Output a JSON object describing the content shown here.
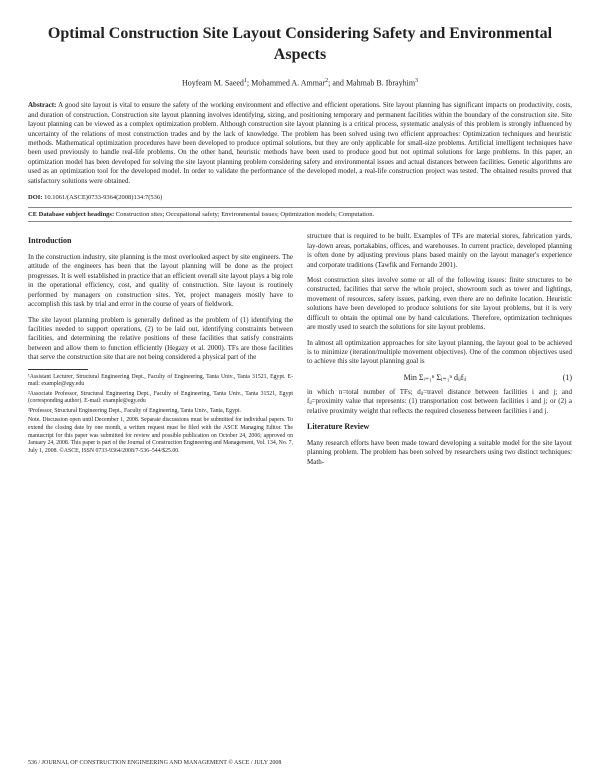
{
  "title": "Optimal Construction Site Layout Considering Safety and Environmental Aspects",
  "authors": {
    "a1": "Hoyfeam M. Saeed",
    "a2": "Mohammed A. Ammar",
    "a3": "Mahmab B. Ibrayhim"
  },
  "abstract_label": "Abstract:",
  "abstract": "A good site layout is vital to ensure the safety of the working environment and effective and efficient operations. Site layout planning has significant impacts on productivity, costs, and duration of construction. Construction site layout planning involves identifying, sizing, and positioning temporary and permanent facilities within the boundary of the construction site. Site layout planning can be viewed as a complex optimization problem. Although construction site layout planning is a critical process, systematic analysis of this problem is strongly influenced by uncertainty of the relations of most construction trades and by the lack of knowledge. The problem has been solved using two efficient approaches: Optimization techniques and heuristic methods. Mathematical optimization procedures have been developed to produce optimal solutions, but they are only applicable for small-size problems. Artificial intelligent techniques have been used previously to handle real-life problems. On the other hand, heuristic methods have been used to produce good but not optimal solutions for large problems. In this paper, an optimization model has been developed for solving the site layout planning problem considering safety and environmental issues and actual distances between facilities. Genetic algorithms are used as an optimization tool for the developed model. In order to validate the performance of the developed model, a real-life construction project was tested. The obtained results proved that satisfactory solutions were obtained.",
  "doi_label": "DOI:",
  "doi": "10.1061/(ASCE)0733-9364(2008)134:7(536)",
  "keywords_label": "CE Database subject headings:",
  "keywords": "Construction sites; Occupational safety; Environmental issues; Optimization models; Computation.",
  "intro_head": "Introduction",
  "intro_p1": "In the construction industry, site planning is the most overlooked aspect by site engineers. The attitude of the engineers has been that the layout planning will be done as the project progresses. It is well established in practice that an efficient overall site layout plays a big role in the operational efficiency, cost, and quality of construction. Site layout is routinely performed by managers on construction sites. Yet, project managers mostly have to accomplish this task by trial and error in the course of years of fieldwork.",
  "intro_p2": "The site layout planning problem is generally defined as the problem of (1) identifying the facilities needed to support operations, (2) to be laid out, identifying constraints between facilities, and determining the relative positions of these facilities that satisfy constraints between and allow them to function efficiently (Hegazy et al. 2000). TFs are those facilities that serve the construction site that are not being considered a physical part of the",
  "intro_p3": "structure that is required to be built. Examples of TFs are material stores, fabrication yards, lay-down areas, portakabins, offices, and warehouses. In current practice, developed planning is often done by adjusting previous plans based mainly on the layout manager's experience and corporate traditions (Tawfik and Fernando 2001).",
  "intro_p4": "Most construction sites involve some or all of the following issues: finite structures to be constructed, facilities that serve the whole project, showroom such as tower and lightings, movement of resources, safety issues, parking, even there are no definite location. Heuristic solutions have been developed to produce solutions for site layout problems, but it is very difficult to obtain the optimal one by hand calculations. Therefore, optimization techniques are mostly used to search the solutions for site layout problems.",
  "intro_p5": "In almost all optimization approaches for site layout planning, the layout goal to be achieved is to minimize (iteration/multiple movement objectives). One of the common objectives used to achieve this site layout planning goal is",
  "eq_label": "Min",
  "eq_body": "Σᵢ₌₁ⁿ Σⱼ₌₁ⁿ dᵢⱼfᵢⱼ",
  "eq_num": "(1)",
  "intro_p6": "in which n=total number of TFs; dᵢⱼ=travel distance between facilities i and j; and fᵢⱼ=proximity value that represents: (1) transportation cost between facilities i and j; or (2) a relative proximity weight that reflects the required closeness between facilities i and j.",
  "litrev_head": "Literature Review",
  "litrev_p1": "Many research efforts have been made toward developing a suitable model for the site layout planning problem. The problem has been solved by researchers using two distinct techniques: Math-",
  "affil1": "¹Assistant Lecturer, Structural Engineering Dept., Faculty of Engineering, Tanta Univ., Tanta 31521, Egypt. E-mail: example@egy.edu",
  "affil2": "²Associate Professor, Structural Engineering Dept., Faculty of Engineering, Tanta Univ., Tanta 31521, Egypt (corresponding author). E-mail: example@egy.edu",
  "affil3": "³Professor, Structural Engineering Dept., Faculty of Engineering, Tanta Univ., Tanta, Egypt.",
  "affil4": "Note. Discussion open until December 1, 2008. Separate discussions must be submitted for individual papers. To extend the closing date by one month, a written request must be filed with the ASCE Managing Editor. The manuscript for this paper was submitted for review and possible publication on October 24, 2006; approved on January 24, 2008. This paper is part of the Journal of Construction Engineering and Management, Vol. 134, No. 7, July 1, 2008. ©ASCE, ISSN 0733-9364/2008/7-536–544/$25.00.",
  "footer_left": "536 / JOURNAL OF CONSTRUCTION ENGINEERING AND MANAGEMENT © ASCE / JULY 2008",
  "footer_right": ""
}
